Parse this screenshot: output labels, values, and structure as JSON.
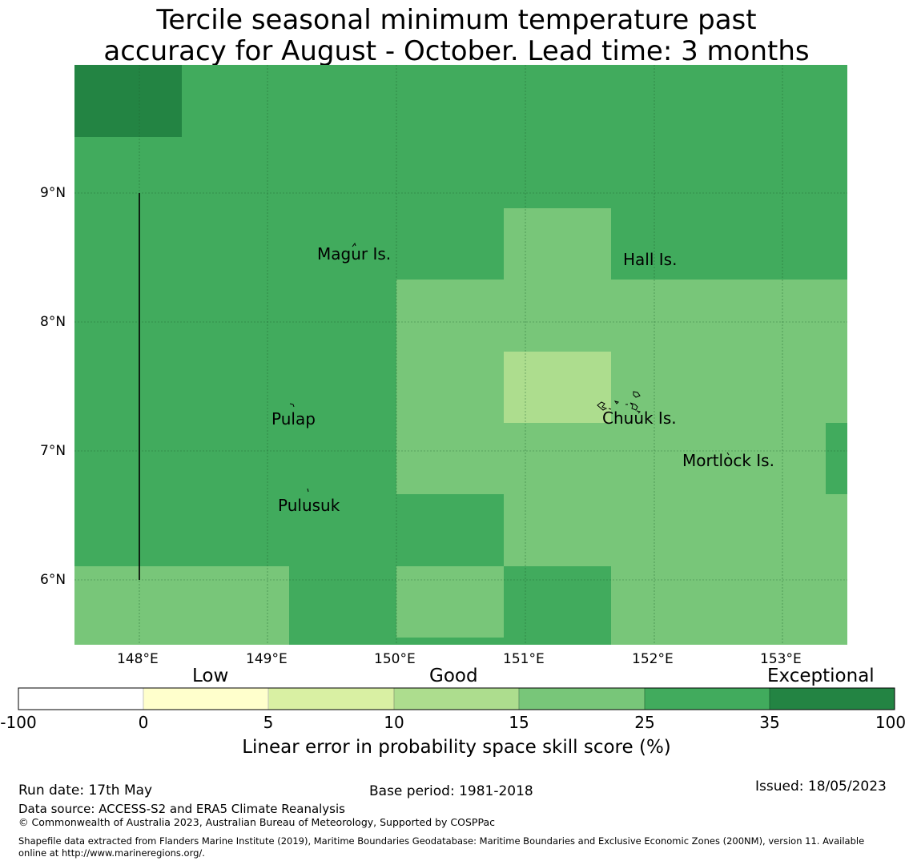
{
  "title": {
    "line1": "Tercile seasonal minimum temperature past",
    "line2": "accuracy for August - October. Lead time: 3 months"
  },
  "map": {
    "lat_labels": [
      "9°N",
      "8°N",
      "7°N",
      "6°N"
    ],
    "lon_labels": [
      "148°E",
      "149°E",
      "150°E",
      "151°E",
      "152°E",
      "153°E"
    ],
    "place_labels": [
      "Magur Is.",
      "Hall Is.",
      "Pulap",
      "Chuuk Is.",
      "Mortlock Is.",
      "Pulusuk"
    ]
  },
  "legend": {
    "category_labels": [
      "Low",
      "Good",
      "Exceptional"
    ],
    "tick_labels": [
      "-100",
      "0",
      "5",
      "10",
      "15",
      "25",
      "35",
      "100"
    ],
    "colors": [
      "#ffffff",
      "#ffffcc",
      "#d9f0a3",
      "#addd8e",
      "#78c679",
      "#41ab5d",
      "#238443"
    ],
    "title": "Linear error in probability space skill score (%)"
  },
  "footer": {
    "run_date": "Run date: 17th May",
    "base_period": "Base period: 1981-2018",
    "issued": "Issued: 18/05/2023",
    "data_source": "Data source: ACCESS-S2 and ERA5 Climate Reanalysis",
    "copyright": "© Commonwealth of Australia 2023, Australian Bureau of Meteorology, Supported by COSPPac",
    "shapefile_line1": "Shapefile data extracted from Flanders Marine Institute (2019), Maritime Boundaries Geodatabase: Maritime Boundaries and Exclusive Economic Zones (200NM), version 11. Available",
    "shapefile_line2": "online at http://www.marineregions.org/."
  }
}
